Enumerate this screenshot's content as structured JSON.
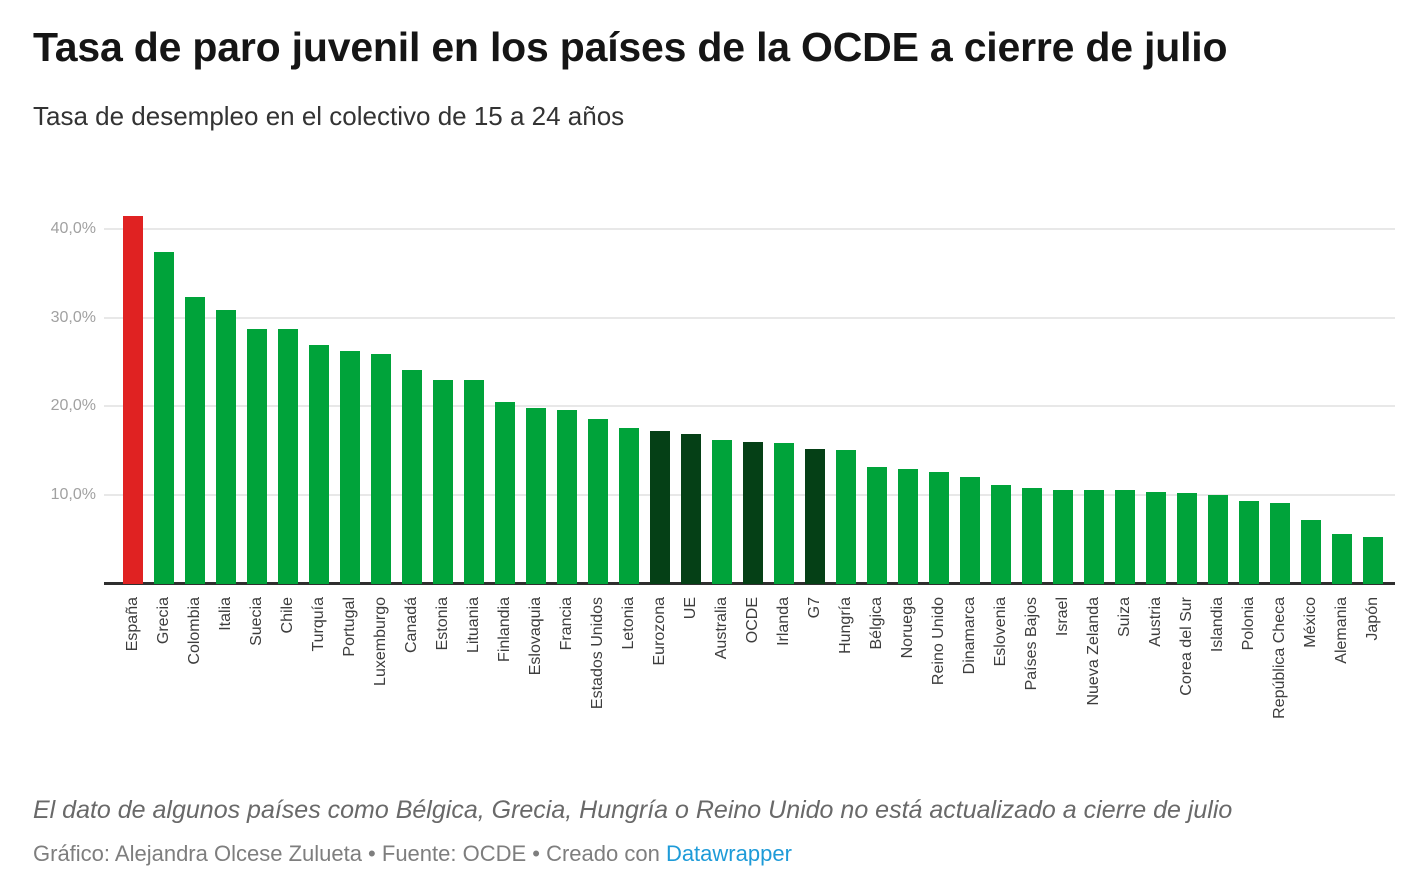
{
  "header": {
    "title": "Tasa de paro juvenil en los países de la OCDE a cierre de julio",
    "subtitle": "Tasa de desempleo en el colectivo de 15 a 24 años"
  },
  "footer": {
    "note": "El dato de algunos países como Bélgica, Grecia, Hungría o Reino Unido no está actualizado a cierre de julio",
    "credit": "Gráfico: Alejandra Olcese Zulueta • Fuente: OCDE • Creado con ",
    "link_label": "Datawrapper",
    "link_color": "#1e9bd8"
  },
  "chart_data": {
    "type": "bar",
    "title": "Tasa de paro juvenil en los países de la OCDE a cierre de julio",
    "subtitle": "Tasa de desempleo en el colectivo de 15 a 24 años",
    "unit": "%",
    "grid": "horizontal",
    "legend": null,
    "xlabel": "",
    "ylabel": "",
    "ylim": [
      0,
      43.3
    ],
    "y_ticks": [
      {
        "value": 40,
        "label": "40,0%"
      },
      {
        "value": 30,
        "label": "30,0%"
      },
      {
        "value": 20,
        "label": "20,0%"
      },
      {
        "value": 10,
        "label": "10,0%"
      }
    ],
    "colors": {
      "highlight_red": "#e02222",
      "country_green": "#00a33a",
      "aggregate_dark_green": "#054016",
      "gridline": "#e8e8e8",
      "baseline": "#2f2f2f"
    },
    "categories": [
      "España",
      "Grecia",
      "Colombia",
      "Italia",
      "Suecia",
      "Chile",
      "Turquía",
      "Portugal",
      "Luxemburgo",
      "Canadá",
      "Estonia",
      "Lituania",
      "Finlandia",
      "Eslovaquia",
      "Francia",
      "Estados Unidos",
      "Letonia",
      "Eurozona",
      "UE",
      "Australia",
      "OCDE",
      "Irlanda",
      "G7",
      "Hungría",
      "Bélgica",
      "Noruega",
      "Reino Unido",
      "Dinamarca",
      "Eslovenia",
      "Países Bajos",
      "Israel",
      "Nueva Zelanda",
      "Suiza",
      "Austria",
      "Corea del Sur",
      "Islandia",
      "Polonia",
      "República Checa",
      "México",
      "Alemania",
      "Japón"
    ],
    "values": [
      41.6,
      37.5,
      32.4,
      31.0,
      28.8,
      28.8,
      27.0,
      26.3,
      26.0,
      24.2,
      23.1,
      23.1,
      20.6,
      19.9,
      19.7,
      18.6,
      17.6,
      17.3,
      16.9,
      16.3,
      16.0,
      15.9,
      15.3,
      15.1,
      13.2,
      13.0,
      12.6,
      12.1,
      11.2,
      10.9,
      10.6,
      10.6,
      10.6,
      10.4,
      10.3,
      10.0,
      9.4,
      9.1,
      7.2,
      5.7,
      5.3
    ],
    "bar_color_keys": [
      "highlight_red",
      "country_green",
      "country_green",
      "country_green",
      "country_green",
      "country_green",
      "country_green",
      "country_green",
      "country_green",
      "country_green",
      "country_green",
      "country_green",
      "country_green",
      "country_green",
      "country_green",
      "country_green",
      "country_green",
      "aggregate_dark_green",
      "aggregate_dark_green",
      "country_green",
      "aggregate_dark_green",
      "country_green",
      "aggregate_dark_green",
      "country_green",
      "country_green",
      "country_green",
      "country_green",
      "country_green",
      "country_green",
      "country_green",
      "country_green",
      "country_green",
      "country_green",
      "country_green",
      "country_green",
      "country_green",
      "country_green",
      "country_green",
      "country_green",
      "country_green",
      "country_green"
    ]
  }
}
